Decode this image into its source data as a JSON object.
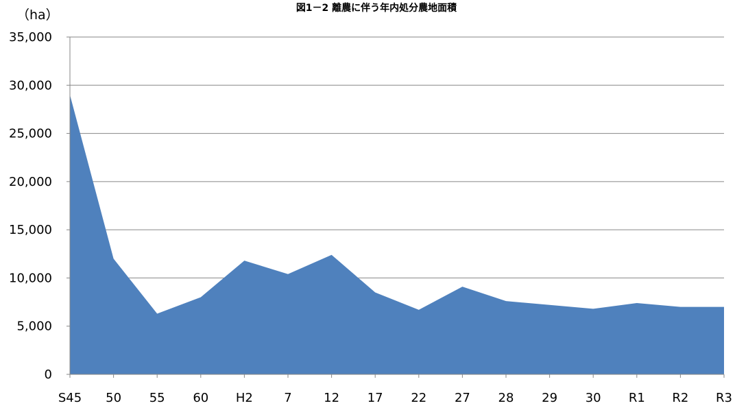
{
  "chart_data": {
    "type": "area",
    "title": "図1－2 離農に伴う年内処分農地面積",
    "unit_label": "（ha）",
    "xlabel": "",
    "ylabel": "",
    "categories": [
      "S45",
      "50",
      "55",
      "60",
      "H2",
      "7",
      "12",
      "17",
      "22",
      "27",
      "28",
      "29",
      "30",
      "R1",
      "R2",
      "R3"
    ],
    "series": [
      {
        "values": [
          29000,
          12000,
          6300,
          8000,
          11800,
          10400,
          12400,
          8500,
          6700,
          9100,
          7600,
          7200,
          6800,
          7400,
          7000,
          7000
        ]
      }
    ],
    "ylim": [
      0,
      35000
    ],
    "yticks": [
      0,
      5000,
      10000,
      15000,
      20000,
      25000,
      30000,
      35000
    ],
    "ytick_labels": [
      "0",
      "5,000",
      "10,000",
      "15,000",
      "20,000",
      "25,000",
      "30,000",
      "35,000"
    ],
    "grid": true,
    "legend": "none",
    "colors": {
      "area": "#4f81bd",
      "grid": "#868686",
      "axis": "#868686"
    }
  }
}
